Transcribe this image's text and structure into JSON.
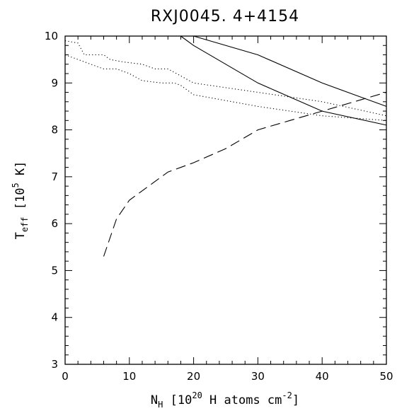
{
  "chart_data": {
    "type": "line",
    "title": "RXJ0045. 4+4154",
    "xlabel": {
      "base": "N",
      "sub": "H",
      "rest1": " [10",
      "sup": "20",
      "rest2": " H atoms cm",
      "sup2": "-2",
      "rest3": "]"
    },
    "ylabel": {
      "base": "T",
      "sub": "eff",
      "rest1": " [10",
      "sup": "5",
      "rest2": " K]"
    },
    "xlim": [
      0,
      50
    ],
    "ylim": [
      3,
      10
    ],
    "xticks": [
      0,
      10,
      20,
      30,
      40,
      50
    ],
    "yticks": [
      3,
      4,
      5,
      6,
      7,
      8,
      9,
      10
    ],
    "grid": false,
    "series": [
      {
        "style": "solid",
        "x": [
          20,
          30,
          40,
          50
        ],
        "y": [
          10.0,
          9.6,
          9.0,
          8.5
        ]
      },
      {
        "style": "solid",
        "x": [
          18,
          20,
          30,
          40,
          50
        ],
        "y": [
          10.0,
          9.8,
          9.0,
          8.4,
          8.1
        ]
      },
      {
        "style": "dotted",
        "x": [
          0,
          2,
          3,
          4,
          6,
          7,
          9,
          12,
          14,
          16,
          18,
          20,
          30,
          40,
          45,
          50
        ],
        "y": [
          9.9,
          9.85,
          9.6,
          9.6,
          9.6,
          9.5,
          9.45,
          9.4,
          9.3,
          9.3,
          9.15,
          9.0,
          8.8,
          8.6,
          8.45,
          8.3
        ]
      },
      {
        "style": "dotted",
        "x": [
          0,
          2,
          4,
          6,
          8,
          10,
          12,
          15,
          17,
          18,
          20,
          30,
          40,
          50
        ],
        "y": [
          9.6,
          9.5,
          9.4,
          9.3,
          9.3,
          9.2,
          9.05,
          9.0,
          9.0,
          8.95,
          8.75,
          8.5,
          8.3,
          8.2
        ]
      },
      {
        "style": "dashed",
        "x": [
          6,
          8,
          10,
          13,
          16,
          20,
          25,
          30,
          35,
          40,
          45,
          50
        ],
        "y": [
          5.3,
          6.1,
          6.5,
          6.8,
          7.1,
          7.3,
          7.6,
          8.0,
          8.2,
          8.4,
          8.6,
          8.8
        ]
      }
    ]
  }
}
